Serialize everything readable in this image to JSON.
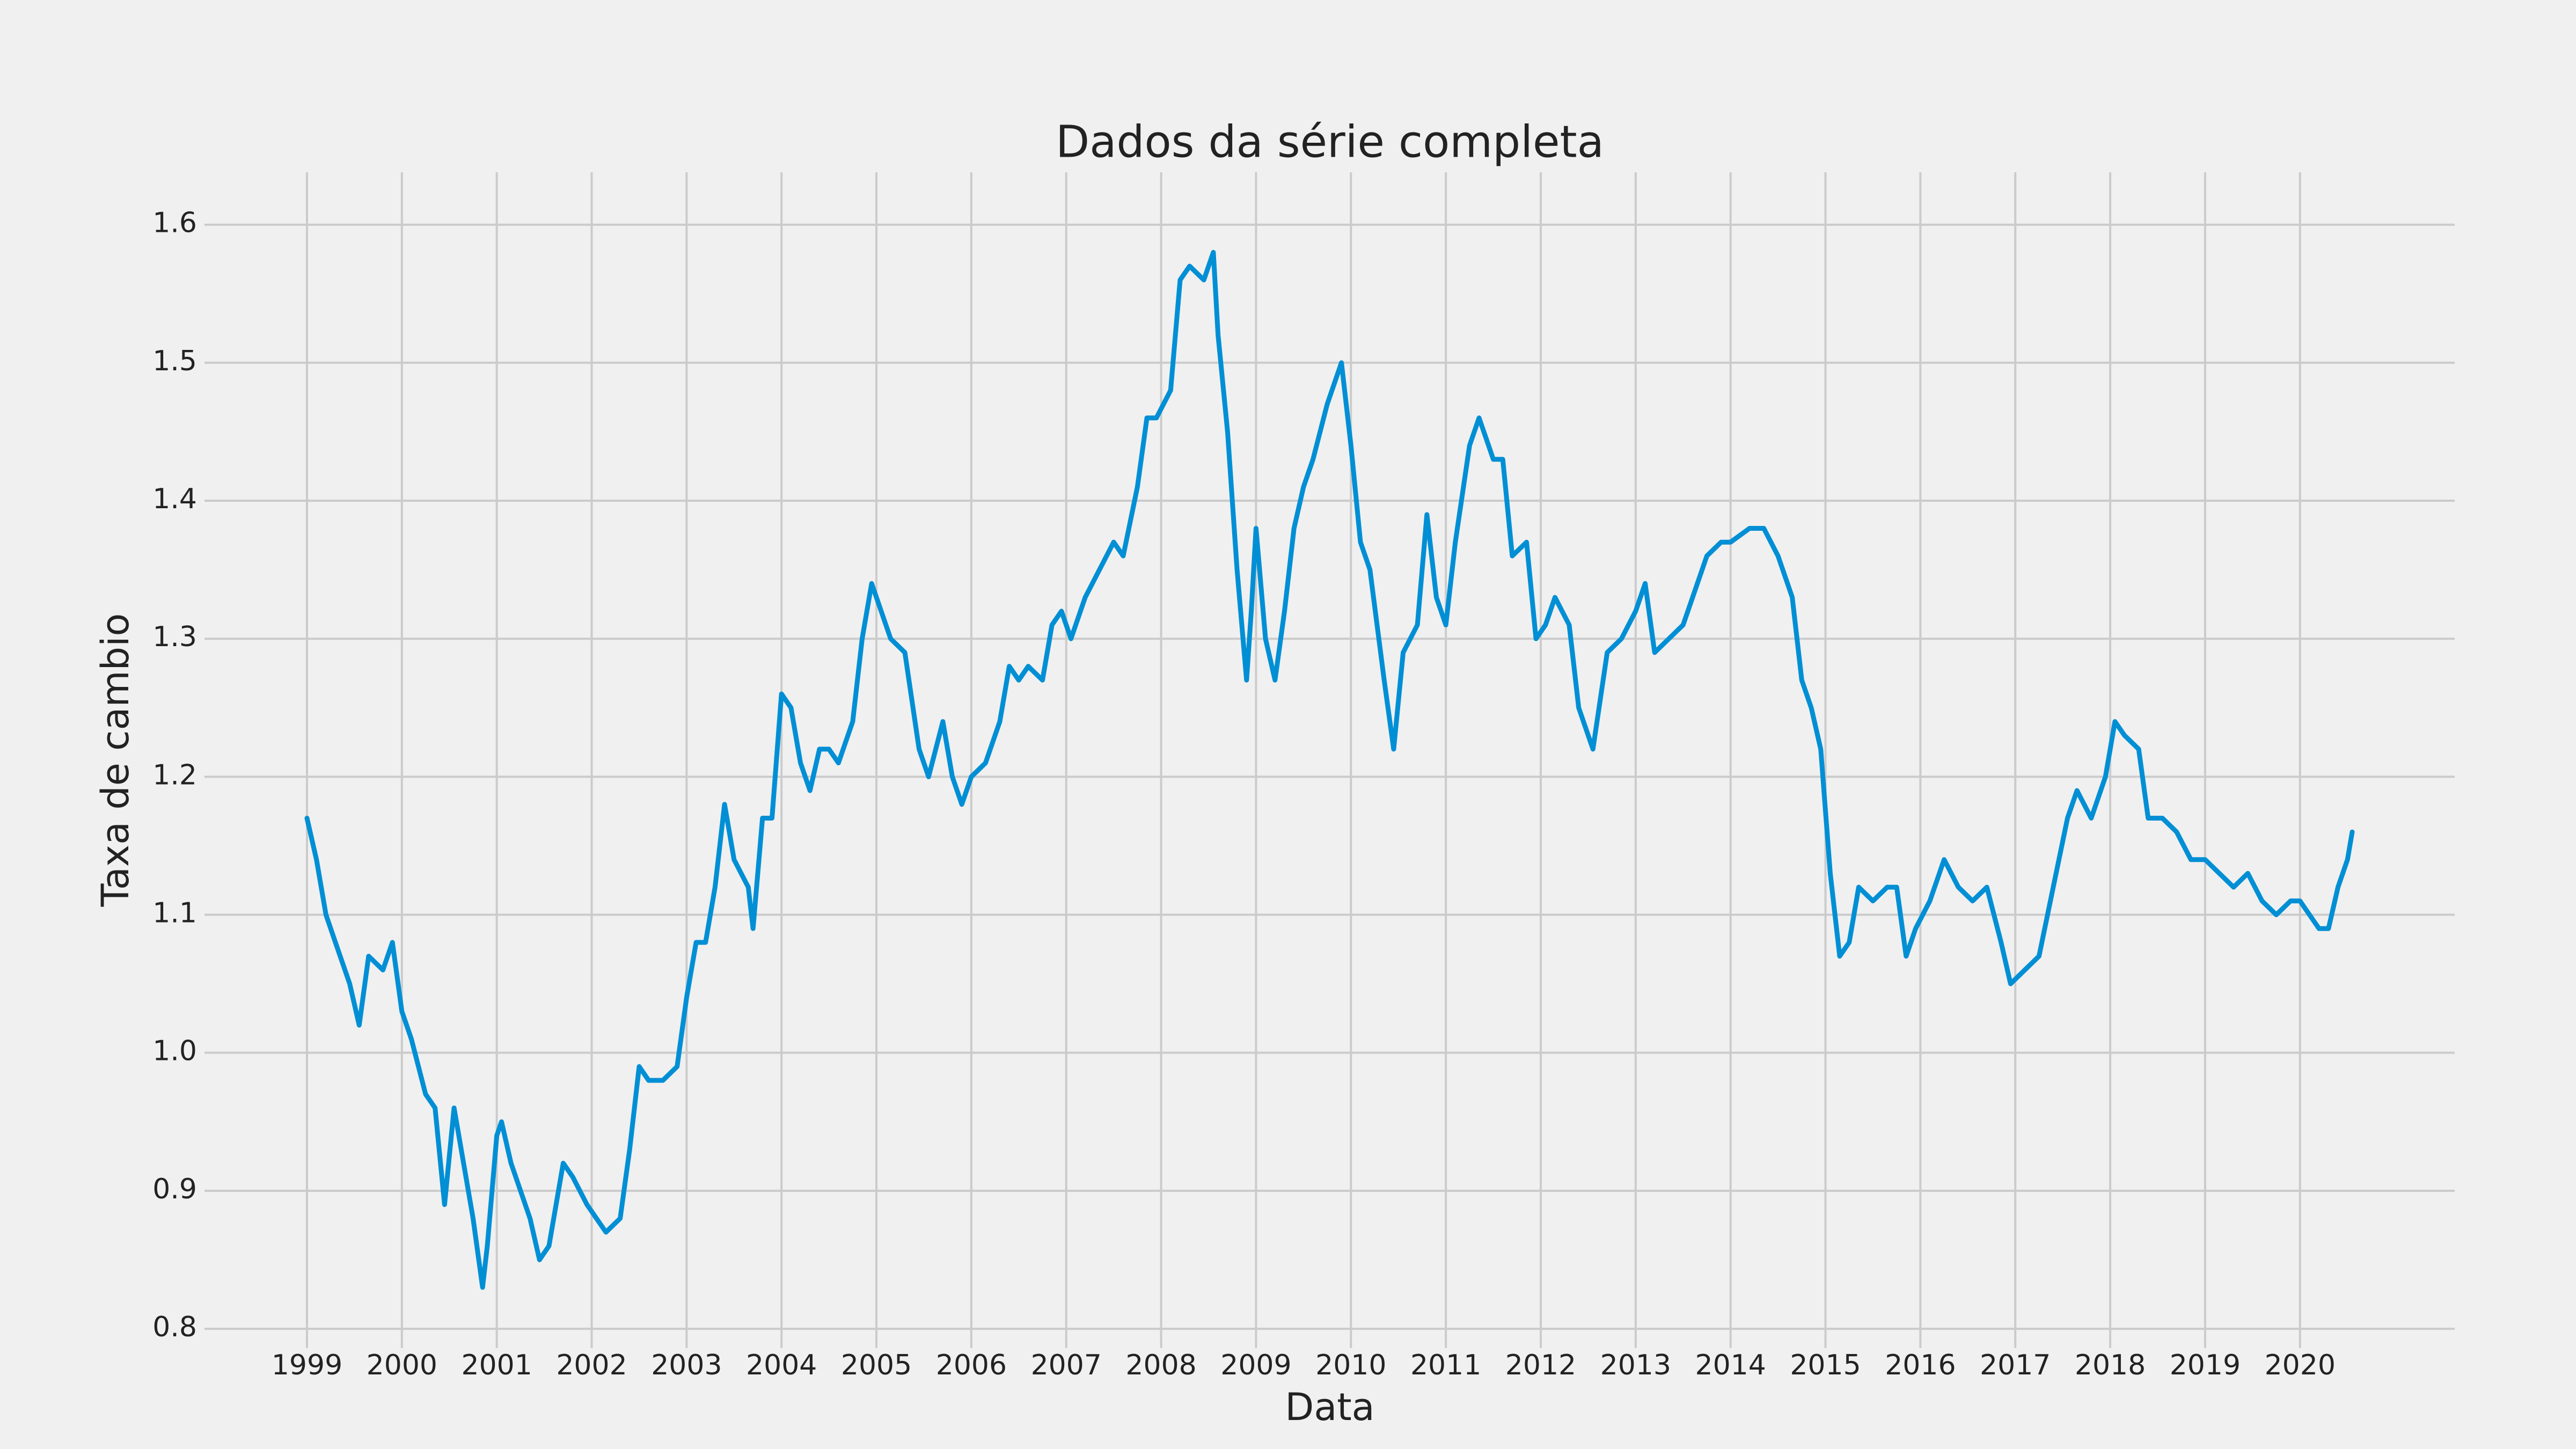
{
  "chart_data": {
    "type": "line",
    "title": "Dados da série completa",
    "xlabel": "Data",
    "ylabel": "Taxa de cambio",
    "color": "#008fd5",
    "grid": true,
    "xlim": [
      1997.92,
      2021.63
    ],
    "ylim": [
      0.786,
      1.638
    ],
    "xticks": [
      1999,
      2000,
      2001,
      2002,
      2003,
      2004,
      2005,
      2006,
      2007,
      2008,
      2009,
      2010,
      2011,
      2012,
      2013,
      2014,
      2015,
      2016,
      2017,
      2018,
      2019,
      2020
    ],
    "yticks": [
      0.8,
      0.9,
      {
        "value": 1,
        "label": "1.0"
      },
      1.1,
      1.2,
      1.3,
      1.4,
      1.5,
      1.6
    ],
    "x": [
      1999.0,
      1999.1,
      1999.2,
      1999.3,
      1999.45,
      1999.55,
      1999.65,
      1999.8,
      1999.9,
      2000.0,
      2000.1,
      2000.25,
      2000.35,
      2000.45,
      2000.55,
      2000.65,
      2000.75,
      2000.85,
      2000.9,
      2001.0,
      2001.05,
      2001.15,
      2001.25,
      2001.35,
      2001.45,
      2001.55,
      2001.7,
      2001.8,
      2001.95,
      2002.05,
      2002.15,
      2002.3,
      2002.4,
      2002.5,
      2002.6,
      2002.75,
      2002.9,
      2003.0,
      2003.1,
      2003.2,
      2003.3,
      2003.4,
      2003.5,
      2003.65,
      2003.7,
      2003.8,
      2003.9,
      2004.0,
      2004.1,
      2004.2,
      2004.3,
      2004.4,
      2004.5,
      2004.6,
      2004.75,
      2004.85,
      2004.95,
      2005.0,
      2005.15,
      2005.3,
      2005.45,
      2005.55,
      2005.7,
      2005.8,
      2005.9,
      2006.0,
      2006.15,
      2006.3,
      2006.4,
      2006.5,
      2006.6,
      2006.75,
      2006.85,
      2006.95,
      2007.05,
      2007.2,
      2007.35,
      2007.5,
      2007.6,
      2007.75,
      2007.85,
      2007.95,
      2008.1,
      2008.2,
      2008.3,
      2008.45,
      2008.55,
      2008.6,
      2008.7,
      2008.8,
      2008.9,
      2008.95,
      2009.0,
      2009.1,
      2009.2,
      2009.3,
      2009.4,
      2009.5,
      2009.6,
      2009.75,
      2009.9,
      2010.0,
      2010.1,
      2010.2,
      2010.35,
      2010.45,
      2010.55,
      2010.7,
      2010.8,
      2010.9,
      2011.0,
      2011.1,
      2011.25,
      2011.35,
      2011.5,
      2011.6,
      2011.7,
      2011.85,
      2011.95,
      2012.05,
      2012.15,
      2012.3,
      2012.4,
      2012.55,
      2012.7,
      2012.85,
      2013.0,
      2013.1,
      2013.2,
      2013.35,
      2013.5,
      2013.6,
      2013.75,
      2013.9,
      2014.0,
      2014.2,
      2014.35,
      2014.5,
      2014.65,
      2014.75,
      2014.85,
      2014.95,
      2015.05,
      2015.15,
      2015.25,
      2015.35,
      2015.5,
      2015.65,
      2015.75,
      2015.85,
      2015.95,
      2016.1,
      2016.25,
      2016.4,
      2016.55,
      2016.7,
      2016.85,
      2016.95,
      2017.1,
      2017.25,
      2017.4,
      2017.55,
      2017.65,
      2017.8,
      2017.95,
      2018.05,
      2018.15,
      2018.3,
      2018.4,
      2018.55,
      2018.7,
      2018.85,
      2019.0,
      2019.15,
      2019.3,
      2019.45,
      2019.6,
      2019.75,
      2019.9,
      2020.0,
      2020.1,
      2020.2,
      2020.3,
      2020.4,
      2020.5,
      2020.55
    ],
    "values": [
      1.17,
      1.14,
      1.1,
      1.08,
      1.05,
      1.02,
      1.07,
      1.06,
      1.08,
      1.03,
      1.01,
      0.97,
      0.96,
      0.89,
      0.96,
      0.92,
      0.88,
      0.83,
      0.86,
      0.94,
      0.95,
      0.92,
      0.9,
      0.88,
      0.85,
      0.86,
      0.92,
      0.91,
      0.89,
      0.88,
      0.87,
      0.88,
      0.93,
      0.99,
      0.98,
      0.98,
      0.99,
      1.04,
      1.08,
      1.08,
      1.12,
      1.18,
      1.14,
      1.12,
      1.09,
      1.17,
      1.17,
      1.26,
      1.25,
      1.21,
      1.19,
      1.22,
      1.22,
      1.21,
      1.24,
      1.3,
      1.34,
      1.33,
      1.3,
      1.29,
      1.22,
      1.2,
      1.24,
      1.2,
      1.18,
      1.2,
      1.21,
      1.24,
      1.28,
      1.27,
      1.28,
      1.27,
      1.31,
      1.32,
      1.3,
      1.33,
      1.35,
      1.37,
      1.36,
      1.41,
      1.46,
      1.46,
      1.48,
      1.56,
      1.57,
      1.56,
      1.58,
      1.52,
      1.45,
      1.35,
      1.27,
      1.32,
      1.38,
      1.3,
      1.27,
      1.32,
      1.38,
      1.41,
      1.43,
      1.47,
      1.5,
      1.44,
      1.37,
      1.35,
      1.27,
      1.22,
      1.29,
      1.31,
      1.39,
      1.33,
      1.31,
      1.37,
      1.44,
      1.46,
      1.43,
      1.43,
      1.36,
      1.37,
      1.3,
      1.31,
      1.33,
      1.31,
      1.25,
      1.22,
      1.29,
      1.3,
      1.32,
      1.34,
      1.29,
      1.3,
      1.31,
      1.33,
      1.36,
      1.37,
      1.37,
      1.38,
      1.38,
      1.36,
      1.33,
      1.27,
      1.25,
      1.22,
      1.13,
      1.07,
      1.08,
      1.12,
      1.11,
      1.12,
      1.12,
      1.07,
      1.09,
      1.11,
      1.14,
      1.12,
      1.11,
      1.12,
      1.08,
      1.05,
      1.06,
      1.07,
      1.12,
      1.17,
      1.19,
      1.17,
      1.2,
      1.24,
      1.23,
      1.22,
      1.17,
      1.17,
      1.16,
      1.14,
      1.14,
      1.13,
      1.12,
      1.13,
      1.11,
      1.1,
      1.11,
      1.11,
      1.1,
      1.09,
      1.09,
      1.12,
      1.14,
      1.16
    ]
  }
}
